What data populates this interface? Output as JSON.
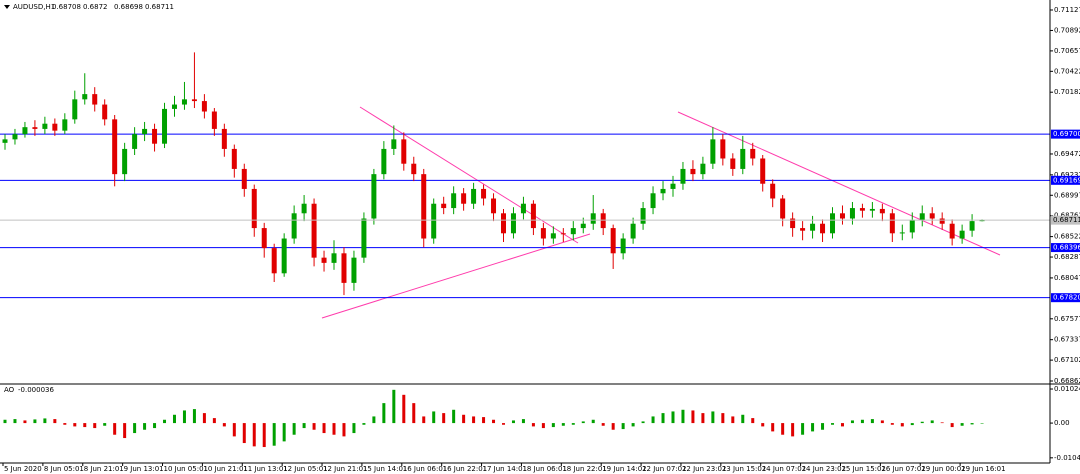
{
  "chart_data": {
    "type": "candlestick",
    "symbol": "AUDUSD,H1",
    "categories": [
      "5 Jun 2020",
      null,
      null,
      null,
      "8 Jun 05:01",
      null,
      null,
      null,
      "8 Jun 21:01",
      null,
      null,
      null,
      "9 Jun 13:01",
      null,
      null,
      null,
      "10 Jun 05:01",
      null,
      null,
      null,
      "10 Jun 21:01",
      null,
      null,
      null,
      "11 Jun 13:01",
      null,
      null,
      null,
      "12 Jun 05:01",
      null,
      null,
      null,
      "12 Jun 21:01",
      null,
      null,
      null,
      "15 Jun 14:01",
      null,
      null,
      null,
      "16 Jun 06:01",
      null,
      null,
      null,
      "16 Jun 22:01",
      null,
      null,
      null,
      "17 Jun 14:01",
      null,
      null,
      null,
      "18 Jun 06:01",
      null,
      null,
      null,
      "18 Jun 22:01",
      null,
      null,
      null,
      "19 Jun 14:01",
      null,
      null,
      null,
      "22 Jun 07:01",
      null,
      null,
      null,
      "22 Jun 23:01",
      null,
      null,
      null,
      "23 Jun 15:01",
      null,
      null,
      null,
      "24 Jun 07:01",
      null,
      null,
      null,
      "24 Jun 23:01",
      null,
      null,
      null,
      "25 Jun 15:01",
      null,
      null,
      null,
      "26 Jun 07:01",
      null,
      null,
      null,
      "29 Jun 00:01",
      null,
      null,
      null,
      "29 Jun 16:01",
      null,
      null
    ],
    "open": [
      0.696,
      0.6964,
      0.697,
      0.6978,
      0.6976,
      0.6982,
      0.6974,
      0.6987,
      0.701,
      0.7016,
      0.7004,
      0.6987,
      0.6924,
      0.6953,
      0.697,
      0.6976,
      0.6959,
      0.6999,
      0.7004,
      0.701,
      0.7008,
      0.6996,
      0.6976,
      0.6953,
      0.693,
      0.6907,
      0.6862,
      0.6839,
      0.681,
      0.685,
      0.6879,
      0.689,
      0.6828,
      0.6822,
      0.6833,
      0.6799,
      0.6828,
      0.6873,
      0.6924,
      0.6953,
      0.6964,
      0.6936,
      0.6924,
      0.685,
      0.689,
      0.6885,
      0.6902,
      0.689,
      0.6907,
      0.6896,
      0.6879,
      0.6856,
      0.6879,
      0.689,
      0.6862,
      0.685,
      0.6856,
      0.6855,
      0.6862,
      0.6867,
      0.6879,
      0.6862,
      0.6833,
      0.685,
      0.6867,
      0.6885,
      0.6902,
      0.6907,
      0.6913,
      0.693,
      0.6924,
      0.6936,
      0.6964,
      0.6942,
      0.693,
      0.6953,
      0.6942,
      0.6913,
      0.6896,
      0.6873,
      0.6862,
      0.6859,
      0.6867,
      0.6856,
      0.6879,
      0.6873,
      0.6885,
      0.6882,
      0.6884,
      0.6879,
      0.6856,
      0.6857,
      0.6871,
      0.6879,
      0.6873,
      0.6867,
      0.685,
      0.6859,
      0.68708
    ],
    "high": [
      0.697,
      0.6976,
      0.6984,
      0.6986,
      0.699,
      0.6988,
      0.6994,
      0.702,
      0.704,
      0.7024,
      0.701,
      0.6992,
      0.696,
      0.6978,
      0.6984,
      0.6982,
      0.7006,
      0.7014,
      0.703,
      0.7064,
      0.7016,
      0.7,
      0.6982,
      0.6958,
      0.6936,
      0.6912,
      0.6868,
      0.6844,
      0.6856,
      0.6888,
      0.69,
      0.6896,
      0.6836,
      0.6848,
      0.684,
      0.6836,
      0.688,
      0.693,
      0.6962,
      0.698,
      0.6972,
      0.6944,
      0.693,
      0.6896,
      0.6898,
      0.691,
      0.6908,
      0.6914,
      0.6912,
      0.6902,
      0.6884,
      0.6886,
      0.6898,
      0.6894,
      0.6868,
      0.6864,
      0.6862,
      0.687,
      0.6874,
      0.69,
      0.6884,
      0.6866,
      0.6856,
      0.6874,
      0.6892,
      0.691,
      0.6916,
      0.6922,
      0.6938,
      0.694,
      0.6944,
      0.6978,
      0.697,
      0.6948,
      0.6968,
      0.696,
      0.6946,
      0.6918,
      0.69,
      0.688,
      0.687,
      0.6876,
      0.6872,
      0.6886,
      0.6888,
      0.6892,
      0.689,
      0.6892,
      0.689,
      0.6884,
      0.6866,
      0.688,
      0.6888,
      0.6886,
      0.688,
      0.6872,
      0.6866,
      0.6878,
      0.6872
    ],
    "low": [
      0.6952,
      0.6958,
      0.6966,
      0.6968,
      0.697,
      0.6968,
      0.697,
      0.6982,
      0.7004,
      0.6996,
      0.698,
      0.691,
      0.6916,
      0.6946,
      0.6962,
      0.695,
      0.6954,
      0.699,
      0.6998,
      0.7,
      0.6988,
      0.6968,
      0.6944,
      0.692,
      0.6898,
      0.6852,
      0.6828,
      0.68,
      0.6806,
      0.6844,
      0.687,
      0.6818,
      0.6812,
      0.6814,
      0.6785,
      0.679,
      0.6822,
      0.6866,
      0.6918,
      0.6946,
      0.6928,
      0.6916,
      0.684,
      0.6844,
      0.6878,
      0.6878,
      0.6882,
      0.6884,
      0.6888,
      0.687,
      0.6846,
      0.685,
      0.6872,
      0.6854,
      0.6842,
      0.6844,
      0.6846,
      0.6848,
      0.6856,
      0.686,
      0.6854,
      0.6815,
      0.6826,
      0.6844,
      0.686,
      0.6878,
      0.6894,
      0.6898,
      0.6906,
      0.6916,
      0.6918,
      0.693,
      0.6934,
      0.6922,
      0.6924,
      0.6934,
      0.6904,
      0.6886,
      0.6864,
      0.6852,
      0.6848,
      0.685,
      0.6846,
      0.685,
      0.6866,
      0.6866,
      0.6874,
      0.6874,
      0.687,
      0.6846,
      0.6848,
      0.685,
      0.6864,
      0.6866,
      0.686,
      0.6842,
      0.6844,
      0.6852,
      0.68698
    ],
    "close": [
      0.6964,
      0.697,
      0.6978,
      0.6976,
      0.6982,
      0.6974,
      0.6987,
      0.701,
      0.7016,
      0.7004,
      0.6987,
      0.6924,
      0.6953,
      0.697,
      0.6976,
      0.6959,
      0.6999,
      0.7004,
      0.701,
      0.7008,
      0.6996,
      0.6976,
      0.6953,
      0.693,
      0.6907,
      0.6862,
      0.6839,
      0.681,
      0.685,
      0.6879,
      0.689,
      0.6828,
      0.6822,
      0.6833,
      0.6799,
      0.6828,
      0.6873,
      0.6924,
      0.6953,
      0.6964,
      0.6936,
      0.6924,
      0.685,
      0.689,
      0.6885,
      0.6902,
      0.689,
      0.6907,
      0.6896,
      0.6879,
      0.6856,
      0.6879,
      0.689,
      0.6862,
      0.685,
      0.6856,
      0.6855,
      0.6862,
      0.6867,
      0.6879,
      0.6862,
      0.6833,
      0.685,
      0.6867,
      0.6885,
      0.6902,
      0.6907,
      0.6913,
      0.693,
      0.6924,
      0.6936,
      0.6964,
      0.6942,
      0.693,
      0.6953,
      0.6942,
      0.6913,
      0.6896,
      0.6873,
      0.6862,
      0.6859,
      0.6867,
      0.6856,
      0.6879,
      0.6873,
      0.6885,
      0.6882,
      0.6884,
      0.6879,
      0.6856,
      0.6857,
      0.6871,
      0.6879,
      0.6873,
      0.6867,
      0.685,
      0.6859,
      0.687,
      0.68711
    ],
    "up_color": "#00a000",
    "down_color": "#e00000",
    "ylim": [
      0.66839,
      0.71242
    ],
    "yticks": [
      0.71127,
      0.70892,
      0.70657,
      0.70422,
      0.70182,
      0.69472,
      0.69232,
      0.68997,
      0.68762,
      0.68522,
      0.68287,
      0.68047,
      0.67577,
      0.67337,
      0.67102,
      0.66862
    ],
    "hlines": [
      {
        "value": 0.697,
        "label": "0.69700"
      },
      0.69169,
      0.68396,
      {
        "value": 0.6782,
        "label": "0.67820"
      }
    ],
    "hline_color": "#0000ff",
    "indicator": {
      "name": "AO",
      "values": [
        0.001,
        0.0012,
        0.0008,
        0.0011,
        0.0014,
        0.0012,
        -0.0005,
        -0.001,
        -0.0012,
        -0.0015,
        -0.0008,
        -0.0035,
        -0.0045,
        -0.003,
        -0.002,
        -0.0015,
        0.001,
        0.0025,
        0.0038,
        0.0042,
        0.003,
        0.0015,
        -0.001,
        -0.004,
        -0.006,
        -0.007,
        -0.0072,
        -0.0068,
        -0.0055,
        -0.0035,
        -0.0015,
        -0.002,
        -0.003,
        -0.0035,
        -0.004,
        -0.003,
        -0.0005,
        0.002,
        0.006,
        0.01,
        0.0085,
        0.006,
        0.002,
        0.0035,
        0.003,
        0.004,
        0.0025,
        0.002,
        0.0018,
        0.001,
        -0.0005,
        0.0008,
        0.0012,
        -0.001,
        -0.0015,
        -0.0012,
        -0.0008,
        -0.0005,
        0.0005,
        0.001,
        -0.0008,
        -0.002,
        -0.0018,
        -0.001,
        0.0005,
        0.002,
        0.003,
        0.0035,
        0.004,
        0.0038,
        0.003,
        0.0035,
        0.003,
        0.002,
        0.0025,
        0.0015,
        -0.001,
        -0.0025,
        -0.0035,
        -0.004,
        -0.0035,
        -0.0025,
        -0.002,
        -0.0005,
        -0.001,
        0.0008,
        0.001,
        0.0012,
        0.0008,
        -0.0005,
        -0.001,
        -0.0006,
        0.0004,
        0.0008,
        0.0002,
        -0.0012,
        -0.0008,
        -0.0004,
        -3.6e-05
      ],
      "ylim": [
        -0.0117,
        0.01145
      ],
      "yticks": [
        0.010241,
        {
          "value": 0,
          "label": "0.00"
        },
        -0.010443
      ],
      "up_color": "#00a000",
      "down_color": "#e00000"
    }
  }
}
